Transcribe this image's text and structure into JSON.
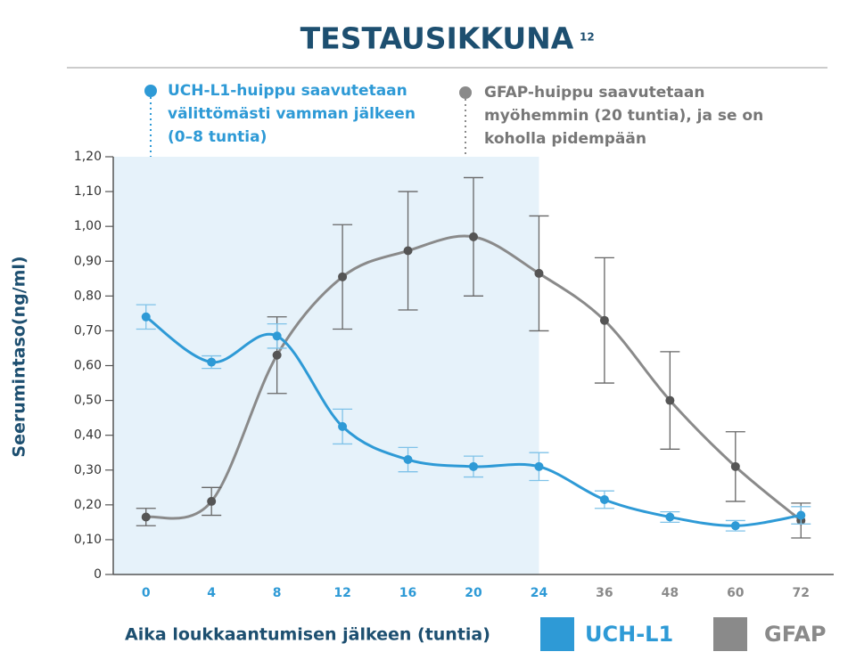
{
  "chart_data": {
    "type": "line",
    "title": "TESTAUSIKKUNA",
    "title_superscript": "12",
    "x_label": "Aika loukkaantumisen jälkeen (tuntia)",
    "y_label": "Seerumintaso(ng/ml)",
    "categories": [
      "0",
      "4",
      "8",
      "12",
      "16",
      "20",
      "24",
      "36",
      "48",
      "60",
      "72"
    ],
    "highlight": {
      "from": "0",
      "to": "24",
      "color": "#e6f2fa"
    },
    "ylim": [
      0,
      1.2
    ],
    "yticks": [
      0,
      {
        "value": 0.1,
        "label": "0,10"
      },
      {
        "value": 0.2,
        "label": "0,20"
      },
      {
        "value": 0.3,
        "label": "0,30"
      },
      {
        "value": 0.4,
        "label": "0,40"
      },
      {
        "value": 0.5,
        "label": "0,50"
      },
      {
        "value": 0.6,
        "label": "0,60"
      },
      {
        "value": 0.7,
        "label": "0,70"
      },
      {
        "value": 0.8,
        "label": "0,80"
      },
      {
        "value": 0.9,
        "label": "0,90"
      },
      {
        "value": 1.0,
        "label": "1,00"
      },
      {
        "value": 1.1,
        "label": "1,10"
      },
      {
        "value": 1.2,
        "label": "1,20"
      }
    ],
    "series": [
      {
        "name": "UCH-L1",
        "color": "#2e9ad6",
        "values": [
          0.74,
          0.61,
          0.685,
          0.425,
          0.33,
          0.31,
          0.31,
          0.215,
          0.165,
          0.14,
          0.17
        ],
        "errors": [
          0.035,
          0.018,
          0.035,
          0.05,
          0.035,
          0.03,
          0.04,
          0.025,
          0.015,
          0.015,
          0.025
        ]
      },
      {
        "name": "GFAP",
        "color": "#8a8a8a",
        "values": [
          0.165,
          0.21,
          0.63,
          0.855,
          0.93,
          0.97,
          0.865,
          0.73,
          0.5,
          0.31,
          0.155
        ],
        "errors": [
          0.025,
          0.04,
          0.11,
          0.15,
          0.17,
          0.17,
          0.165,
          0.18,
          0.14,
          0.1,
          0.05
        ]
      }
    ],
    "annotations": [
      {
        "lines": [
          "UCH-L1-huippu saavutetaan",
          "välittömästi vamman jälkeen",
          "(0–8 tuntia)"
        ]
      },
      {
        "lines": [
          "GFAP-huippu saavutetaan",
          "myöhemmin (20 tuntia), ja se on",
          "koholla pidempään"
        ]
      }
    ]
  }
}
